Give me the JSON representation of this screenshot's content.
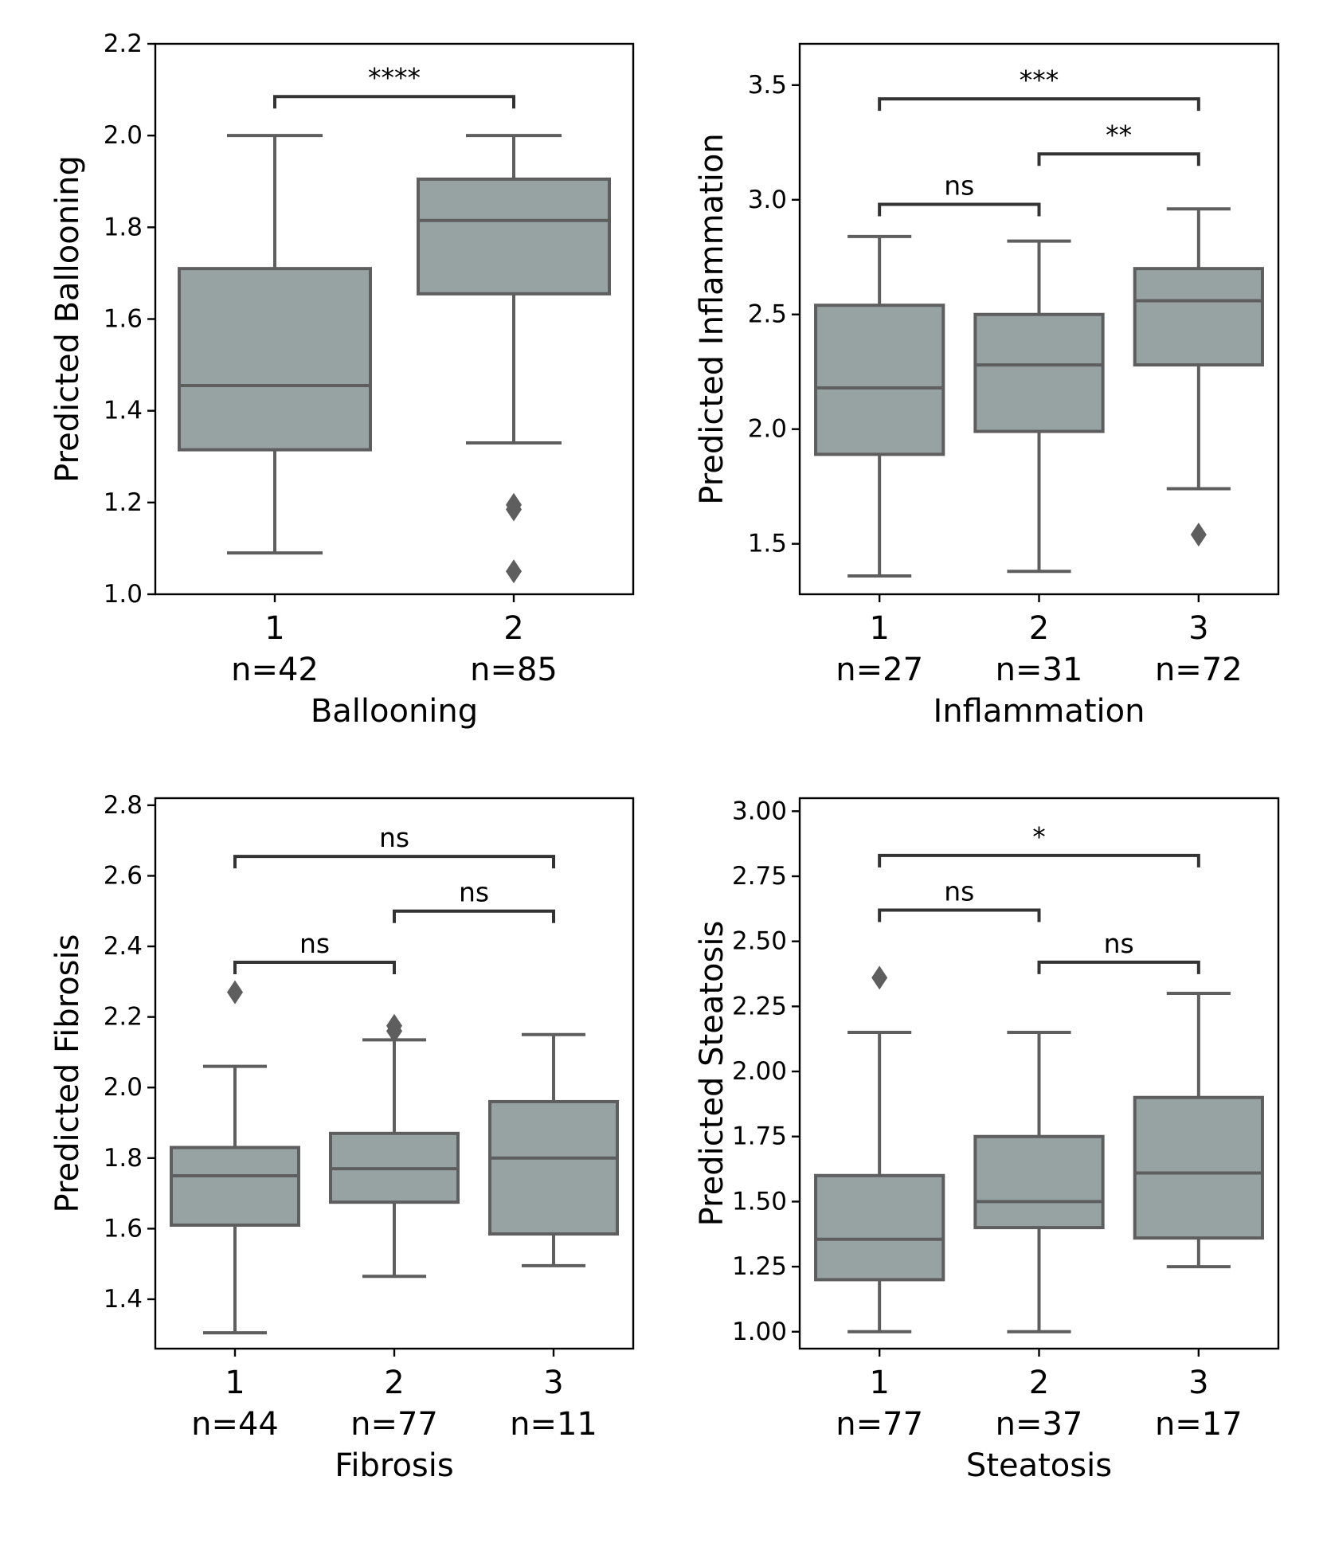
{
  "colors": {
    "box_fill": "#97a3a3",
    "box_edge": "#5e5e5e",
    "bracket": "#333333",
    "axis": "#000000"
  },
  "chart_data": [
    {
      "id": "ballooning",
      "type": "box",
      "xlabel": "Ballooning",
      "ylabel": "Predicted Ballooning",
      "ylim": [
        1.0,
        2.2
      ],
      "yticks": [
        "1.0",
        "1.2",
        "1.4",
        "1.6",
        "1.8",
        "2.0",
        "2.2"
      ],
      "categories": [
        {
          "label": "1",
          "n_label": "n=42",
          "whisker_low": 1.09,
          "q1": 1.315,
          "median": 1.455,
          "q3": 1.71,
          "whisker_high": 2.0,
          "outliers": []
        },
        {
          "label": "2",
          "n_label": "n=85",
          "whisker_low": 1.33,
          "q1": 1.655,
          "median": 1.815,
          "q3": 1.905,
          "whisker_high": 2.0,
          "outliers": [
            1.195,
            1.185,
            1.05
          ]
        }
      ],
      "annotations": [
        {
          "from": 0,
          "to": 1,
          "y": 2.085,
          "text": "****"
        }
      ]
    },
    {
      "id": "inflammation",
      "type": "box",
      "xlabel": "Inflammation",
      "ylabel": "Predicted Inflammation",
      "ylim": [
        1.28,
        3.68
      ],
      "yticks": [
        "1.5",
        "2.0",
        "2.5",
        "3.0",
        "3.5"
      ],
      "categories": [
        {
          "label": "1",
          "n_label": "n=27",
          "whisker_low": 1.36,
          "q1": 1.89,
          "median": 2.18,
          "q3": 2.54,
          "whisker_high": 2.84,
          "outliers": []
        },
        {
          "label": "2",
          "n_label": "n=31",
          "whisker_low": 1.38,
          "q1": 1.99,
          "median": 2.28,
          "q3": 2.5,
          "whisker_high": 2.82,
          "outliers": []
        },
        {
          "label": "3",
          "n_label": "n=72",
          "whisker_low": 1.74,
          "q1": 2.28,
          "median": 2.56,
          "q3": 2.7,
          "whisker_high": 2.96,
          "outliers": [
            1.54
          ]
        }
      ],
      "annotations": [
        {
          "from": 0,
          "to": 1,
          "y": 2.98,
          "text": "ns"
        },
        {
          "from": 1,
          "to": 2,
          "y": 3.2,
          "text": "**"
        },
        {
          "from": 0,
          "to": 2,
          "y": 3.44,
          "text": "***"
        }
      ]
    },
    {
      "id": "fibrosis",
      "type": "box",
      "xlabel": "Fibrosis",
      "ylabel": "Predicted Fibrosis",
      "ylim": [
        1.26,
        2.82
      ],
      "yticks": [
        "1.4",
        "1.6",
        "1.8",
        "2.0",
        "2.2",
        "2.4",
        "2.6",
        "2.8"
      ],
      "categories": [
        {
          "label": "1",
          "n_label": "n=44",
          "whisker_low": 1.305,
          "q1": 1.61,
          "median": 1.75,
          "q3": 1.83,
          "whisker_high": 2.06,
          "outliers": [
            2.27
          ]
        },
        {
          "label": "2",
          "n_label": "n=77",
          "whisker_low": 1.465,
          "q1": 1.675,
          "median": 1.77,
          "q3": 1.87,
          "whisker_high": 2.135,
          "outliers": [
            2.175,
            2.16
          ]
        },
        {
          "label": "3",
          "n_label": "n=11",
          "whisker_low": 1.495,
          "q1": 1.585,
          "median": 1.8,
          "q3": 1.96,
          "whisker_high": 2.15,
          "outliers": []
        }
      ],
      "annotations": [
        {
          "from": 0,
          "to": 1,
          "y": 2.355,
          "text": "ns"
        },
        {
          "from": 1,
          "to": 2,
          "y": 2.5,
          "text": "ns"
        },
        {
          "from": 0,
          "to": 2,
          "y": 2.655,
          "text": "ns"
        }
      ]
    },
    {
      "id": "steatosis",
      "type": "box",
      "xlabel": "Steatosis",
      "ylabel": "Predicted Steatosis",
      "ylim": [
        0.935,
        3.05
      ],
      "yticks": [
        "1.00",
        "1.25",
        "1.50",
        "1.75",
        "2.00",
        "2.25",
        "2.50",
        "2.75",
        "3.00"
      ],
      "categories": [
        {
          "label": "1",
          "n_label": "n=77",
          "whisker_low": 1.0,
          "q1": 1.2,
          "median": 1.355,
          "q3": 1.6,
          "whisker_high": 2.15,
          "outliers": [
            2.36
          ]
        },
        {
          "label": "2",
          "n_label": "n=37",
          "whisker_low": 1.0,
          "q1": 1.4,
          "median": 1.5,
          "q3": 1.75,
          "whisker_high": 2.15,
          "outliers": []
        },
        {
          "label": "3",
          "n_label": "n=17",
          "whisker_low": 1.25,
          "q1": 1.36,
          "median": 1.61,
          "q3": 1.9,
          "whisker_high": 2.3,
          "outliers": []
        }
      ],
      "annotations": [
        {
          "from": 0,
          "to": 1,
          "y": 2.62,
          "text": "ns"
        },
        {
          "from": 1,
          "to": 2,
          "y": 2.42,
          "text": "ns"
        },
        {
          "from": 0,
          "to": 2,
          "y": 2.83,
          "text": "*"
        }
      ]
    }
  ]
}
